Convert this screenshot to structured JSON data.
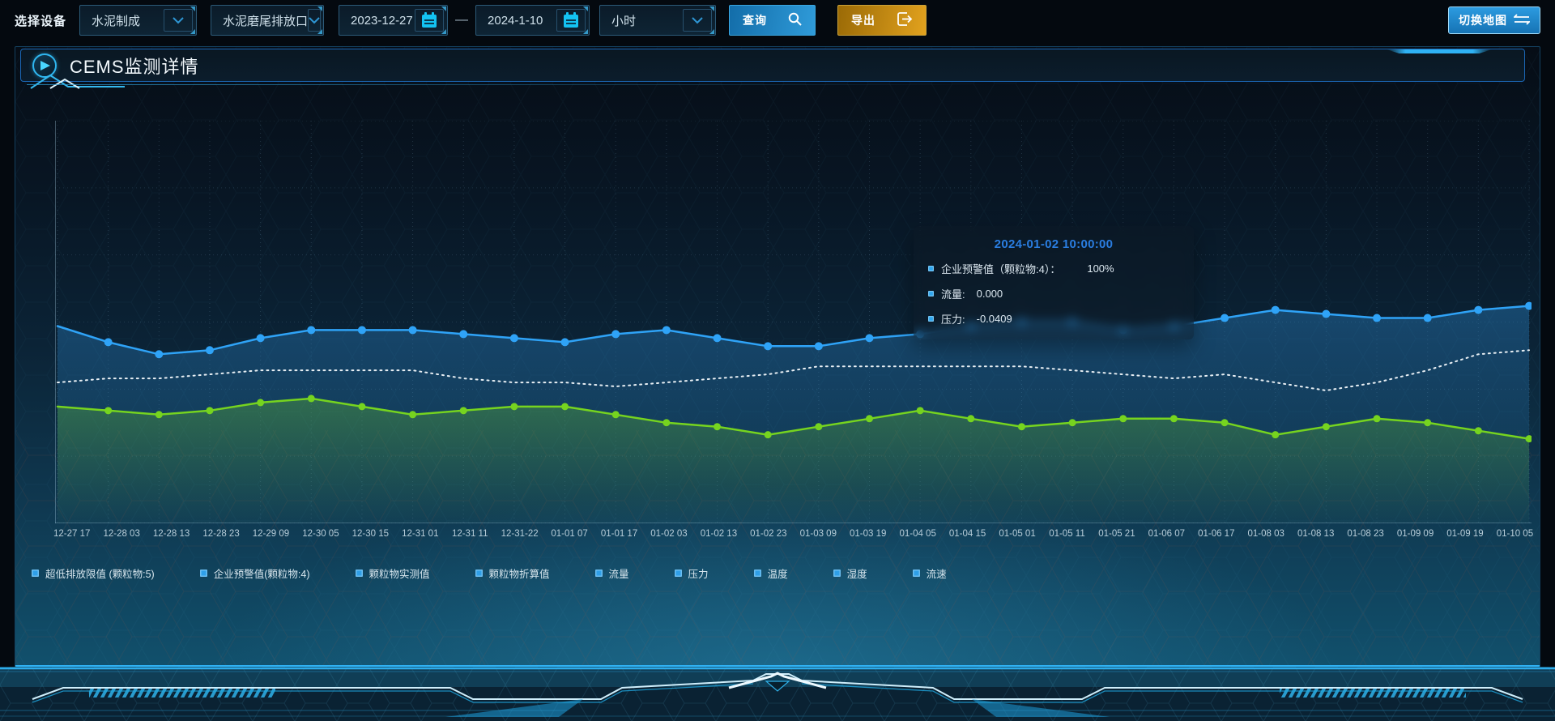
{
  "toolbar": {
    "label": "选择设备",
    "device_type": "水泥制成",
    "outlet": "水泥磨尾排放口",
    "date_start": "2023-12-27",
    "separator": "—",
    "date_end": "2024-1-10",
    "interval": "小时",
    "query": "查询",
    "export": "导出",
    "switch_map": "切换地图"
  },
  "panel": {
    "title": "CEMS监测详情"
  },
  "tooltip": {
    "title": "2024-01-02 10:00:00",
    "rows": [
      {
        "label": "企业预警值（颗粒物:4）：",
        "value": "100%"
      },
      {
        "label": "流量:",
        "value": "0.000"
      },
      {
        "label": "压力:",
        "value": "-0.0409"
      }
    ]
  },
  "chart_data": {
    "type": "line",
    "title": "",
    "xlabel": "",
    "ylabel": "",
    "y_axis_tick_labels_visible": false,
    "grid": true,
    "legend_position": "bottom-left",
    "x_labels": [
      "12-27 17",
      "12-28 03",
      "12-28 13",
      "12-28 23",
      "12-29 09",
      "12-30 05",
      "12-30 15",
      "12-31 01",
      "12-31 11",
      "12-31-22",
      "01-01 07",
      "01-01 17",
      "01-02 03",
      "01-02 13",
      "01-02 23",
      "01-03 09",
      "01-03 19",
      "01-04 05",
      "01-04 15",
      "01-05 01",
      "01-05 11",
      "01-05 21",
      "01-06 07",
      "01-06 17",
      "01-08 03",
      "01-08 13",
      "01-08 23",
      "01-09 09",
      "01-09 19",
      "01-10 05"
    ],
    "legend_items": [
      "超低排放限值 (颗粒物:5)",
      "企业预警值(颗粒物:4)",
      "颗粒物实测值",
      "颗粒物折算值",
      "流量",
      "压力",
      "温度",
      "湿度",
      "流速"
    ],
    "value_unit": "percent of plot height (y-axis unlabeled in source)",
    "series": [
      {
        "id": "blue-line",
        "color": "#2fa3f7",
        "style": "solid",
        "dots": true,
        "area": true,
        "values": [
          49,
          45,
          42,
          43,
          46,
          48,
          48,
          48,
          47,
          46,
          45,
          47,
          48,
          46,
          44,
          44,
          46,
          47,
          49,
          50,
          50,
          48,
          49,
          51,
          53,
          52,
          51,
          51,
          53,
          54
        ]
      },
      {
        "id": "white-dashed-line",
        "color": "#e8eff4",
        "style": "dotted",
        "dots": false,
        "area": false,
        "values": [
          35,
          36,
          36,
          37,
          38,
          38,
          38,
          38,
          36,
          35,
          35,
          34,
          35,
          36,
          37,
          39,
          39,
          39,
          39,
          39,
          38,
          37,
          36,
          37,
          35,
          33,
          35,
          38,
          42,
          43
        ]
      },
      {
        "id": "green-line",
        "color": "#76d41f",
        "style": "solid",
        "dots": true,
        "area": true,
        "values": [
          29,
          28,
          27,
          28,
          30,
          31,
          29,
          27,
          28,
          29,
          29,
          27,
          25,
          24,
          22,
          24,
          26,
          28,
          26,
          24,
          25,
          26,
          26,
          25,
          22,
          24,
          26,
          25,
          23,
          21
        ]
      }
    ]
  },
  "colors": {
    "accent": "#2fb2f4",
    "blue_line": "#2fa3f7",
    "green_line": "#76d41f",
    "white_line": "#e8eff4",
    "query_button": "#2f9bd9",
    "export_button": "#e2a21e",
    "tooltip_title": "#2a7de0"
  }
}
